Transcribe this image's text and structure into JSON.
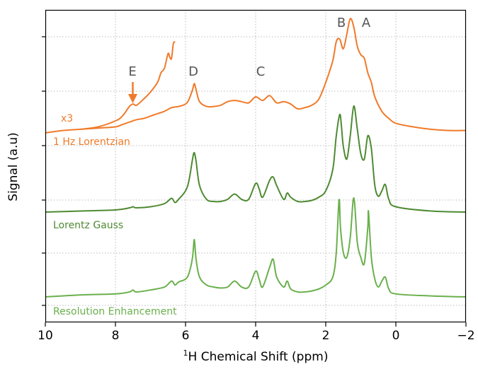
{
  "chart_data": {
    "type": "line",
    "title": "",
    "xlabel_prefix": "1",
    "xlabel": "H Chemical Shift (ppm)",
    "ylabel": "Signal (a.u)",
    "xlim": [
      10,
      -2
    ],
    "x_ticks": [
      "10",
      "8",
      "6",
      "4",
      "2",
      "0",
      "−2"
    ],
    "grid": true,
    "peaks": [
      {
        "label": "A",
        "ppm": 0.9
      },
      {
        "label": "B",
        "ppm": 1.3
      },
      {
        "label": "C",
        "ppm": 3.9
      },
      {
        "label": "D",
        "ppm": 5.75
      },
      {
        "label": "E",
        "ppm": 7.5
      }
    ],
    "series": [
      {
        "name": "1 Hz Lorentzian",
        "color": "#f07a2a",
        "x": [
          10.0,
          9.5,
          9.0,
          8.5,
          8.0,
          7.8,
          7.6,
          7.4,
          7.2,
          7.0,
          6.8,
          6.6,
          6.4,
          6.2,
          6.0,
          5.9,
          5.8,
          5.75,
          5.7,
          5.6,
          5.4,
          5.2,
          5.0,
          4.8,
          4.6,
          4.4,
          4.2,
          4.0,
          3.8,
          3.6,
          3.4,
          3.2,
          3.0,
          2.8,
          2.6,
          2.4,
          2.2,
          2.0,
          1.8,
          1.7,
          1.6,
          1.5,
          1.4,
          1.3,
          1.2,
          1.1,
          1.0,
          0.9,
          0.8,
          0.7,
          0.6,
          0.4,
          0.2,
          0.0,
          -0.5,
          -1.0,
          -1.5,
          -2.0
        ],
        "y": [
          0.0,
          0.02,
          0.03,
          0.04,
          0.05,
          0.07,
          0.09,
          0.11,
          0.12,
          0.14,
          0.16,
          0.18,
          0.21,
          0.22,
          0.24,
          0.28,
          0.36,
          0.41,
          0.36,
          0.26,
          0.22,
          0.22,
          0.23,
          0.26,
          0.27,
          0.26,
          0.25,
          0.3,
          0.27,
          0.31,
          0.25,
          0.26,
          0.24,
          0.2,
          0.21,
          0.23,
          0.28,
          0.42,
          0.6,
          0.76,
          0.78,
          0.7,
          0.82,
          0.95,
          0.88,
          0.72,
          0.65,
          0.62,
          0.5,
          0.42,
          0.3,
          0.18,
          0.12,
          0.08,
          0.05,
          0.03,
          0.02,
          0.02
        ],
        "label_annotation": "x3",
        "x3_x": [
          9.0,
          8.5,
          8.0,
          7.8,
          7.6,
          7.5,
          7.4,
          7.2,
          7.0,
          6.8,
          6.7,
          6.6,
          6.5,
          6.45,
          6.4,
          6.35,
          6.3
        ],
        "x3_y": [
          0.03,
          0.05,
          0.1,
          0.14,
          0.22,
          0.24,
          0.23,
          0.28,
          0.34,
          0.42,
          0.5,
          0.54,
          0.66,
          0.63,
          0.62,
          0.74,
          0.76
        ]
      },
      {
        "name": "Lorentz Gauss",
        "color": "#4e8a32",
        "x": [
          10.0,
          9.0,
          8.0,
          7.6,
          7.5,
          7.4,
          7.0,
          6.6,
          6.4,
          6.3,
          6.2,
          6.0,
          5.9,
          5.8,
          5.75,
          5.7,
          5.6,
          5.4,
          5.2,
          5.0,
          4.8,
          4.6,
          4.4,
          4.2,
          4.0,
          3.9,
          3.8,
          3.6,
          3.5,
          3.4,
          3.2,
          3.1,
          3.0,
          2.8,
          2.6,
          2.4,
          2.2,
          2.0,
          1.8,
          1.7,
          1.6,
          1.55,
          1.5,
          1.4,
          1.3,
          1.2,
          1.1,
          1.0,
          0.9,
          0.8,
          0.7,
          0.6,
          0.5,
          0.4,
          0.3,
          0.2,
          0.0,
          -1.0,
          -2.0
        ],
        "y": [
          0.0,
          0.01,
          0.02,
          0.04,
          0.05,
          0.04,
          0.05,
          0.08,
          0.13,
          0.09,
          0.12,
          0.2,
          0.3,
          0.5,
          0.56,
          0.48,
          0.25,
          0.12,
          0.1,
          0.1,
          0.12,
          0.17,
          0.12,
          0.12,
          0.27,
          0.22,
          0.14,
          0.3,
          0.33,
          0.25,
          0.12,
          0.18,
          0.14,
          0.1,
          0.1,
          0.11,
          0.14,
          0.2,
          0.4,
          0.72,
          0.92,
          0.8,
          0.62,
          0.5,
          0.72,
          1.0,
          0.78,
          0.55,
          0.5,
          0.72,
          0.6,
          0.25,
          0.15,
          0.2,
          0.26,
          0.12,
          0.05,
          0.01,
          0.0
        ]
      },
      {
        "name": "Resolution Enhancement",
        "color": "#6ab04c",
        "x": [
          10.0,
          9.0,
          8.0,
          7.6,
          7.5,
          7.4,
          7.0,
          6.6,
          6.4,
          6.3,
          6.2,
          6.0,
          5.9,
          5.8,
          5.75,
          5.7,
          5.6,
          5.4,
          5.2,
          5.0,
          4.8,
          4.6,
          4.4,
          4.2,
          4.0,
          3.9,
          3.8,
          3.6,
          3.5,
          3.4,
          3.2,
          3.1,
          3.0,
          2.8,
          2.6,
          2.4,
          2.2,
          2.0,
          1.8,
          1.7,
          1.62,
          1.58,
          1.5,
          1.4,
          1.3,
          1.2,
          1.1,
          1.0,
          0.9,
          0.8,
          0.78,
          0.7,
          0.6,
          0.5,
          0.4,
          0.3,
          0.2,
          0.0,
          -1.0,
          -2.0
        ],
        "y": [
          0.0,
          0.02,
          0.03,
          0.05,
          0.07,
          0.05,
          0.07,
          0.1,
          0.16,
          0.12,
          0.15,
          0.18,
          0.24,
          0.4,
          0.58,
          0.38,
          0.2,
          0.12,
          0.1,
          0.09,
          0.1,
          0.16,
          0.1,
          0.1,
          0.26,
          0.18,
          0.1,
          0.3,
          0.38,
          0.2,
          0.1,
          0.16,
          0.08,
          0.05,
          0.05,
          0.06,
          0.08,
          0.12,
          0.2,
          0.45,
          0.98,
          0.7,
          0.45,
          0.4,
          0.6,
          1.0,
          0.55,
          0.4,
          0.34,
          0.7,
          0.86,
          0.4,
          0.18,
          0.1,
          0.16,
          0.2,
          0.08,
          0.03,
          0.01,
          0.0
        ]
      }
    ]
  }
}
